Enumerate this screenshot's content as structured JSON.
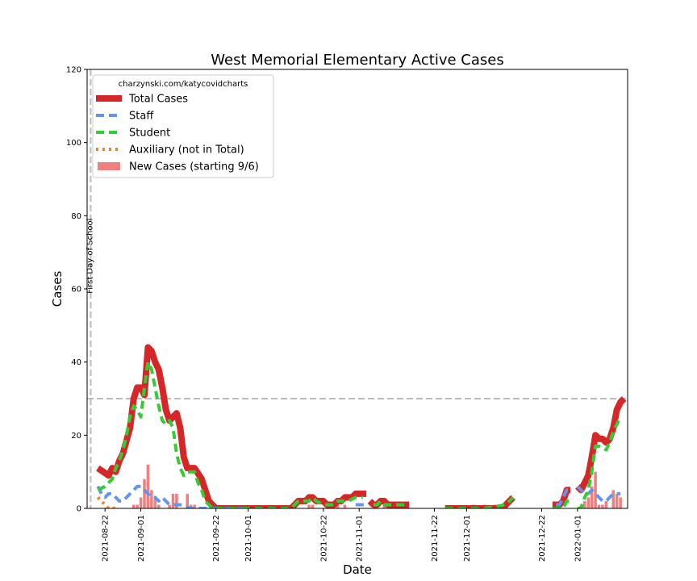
{
  "chart_data": {
    "type": "line",
    "title": "West Memorial Elementary Active Cases",
    "xlabel": "Date",
    "ylabel": "Cases",
    "ylim": [
      0,
      120
    ],
    "xlim": [
      "2021-08-17",
      "2022-01-15"
    ],
    "yticks": [
      0,
      20,
      40,
      60,
      80,
      100,
      120
    ],
    "xticks": [
      "2021-08-22",
      "2021-09-01",
      "2021-09-22",
      "2021-10-01",
      "2021-10-22",
      "2021-11-01",
      "2021-11-22",
      "2021-12-01",
      "2021-12-22",
      "2022-01-01"
    ],
    "credit": "charzynski.com/katycovidcharts",
    "legend_position": "top-left",
    "grid": false,
    "annotations": {
      "first_day": {
        "date": "2021-08-18",
        "label": "First Day of School"
      },
      "threshold": {
        "value": 30
      }
    },
    "series": [
      {
        "name": "Total Cases",
        "style": "solid",
        "color": "#d62728",
        "points": [
          [
            "2021-08-20",
            11
          ],
          [
            "2021-08-23",
            9
          ],
          [
            "2021-08-24",
            11
          ],
          [
            "2021-08-25",
            10
          ],
          [
            "2021-08-26",
            13
          ],
          [
            "2021-08-27",
            15
          ],
          [
            "2021-08-29",
            22
          ],
          [
            "2021-08-30",
            30
          ],
          [
            "2021-08-31",
            33
          ],
          [
            "2021-09-01",
            33
          ],
          [
            "2021-09-02",
            31
          ],
          [
            "2021-09-03",
            44
          ],
          [
            "2021-09-04",
            43
          ],
          [
            "2021-09-05",
            40
          ],
          [
            "2021-09-06",
            38
          ],
          [
            "2021-09-07",
            33
          ],
          [
            "2021-09-08",
            27
          ],
          [
            "2021-09-09",
            24
          ],
          [
            "2021-09-10",
            25
          ],
          [
            "2021-09-11",
            26
          ],
          [
            "2021-09-12",
            22
          ],
          [
            "2021-09-13",
            14
          ],
          [
            "2021-09-14",
            11
          ],
          [
            "2021-09-16",
            11
          ],
          [
            "2021-09-18",
            8
          ],
          [
            "2021-09-19",
            5
          ],
          [
            "2021-09-20",
            2
          ],
          [
            "2021-09-21",
            1
          ],
          [
            "2021-09-22",
            0
          ],
          [
            "2021-09-27",
            0
          ],
          [
            "2021-10-05",
            0
          ],
          [
            "2021-10-13",
            0
          ],
          [
            "2021-10-15",
            2
          ],
          [
            "2021-10-17",
            2
          ],
          [
            "2021-10-18",
            3
          ],
          [
            "2021-10-19",
            3
          ],
          [
            "2021-10-20",
            2
          ],
          [
            "2021-10-22",
            2
          ],
          [
            "2021-10-23",
            1
          ],
          [
            "2021-10-25",
            1
          ],
          [
            "2021-10-26",
            2
          ],
          [
            "2021-10-27",
            2
          ],
          [
            "2021-10-28",
            3
          ],
          [
            "2021-10-30",
            3
          ],
          [
            "2021-10-31",
            4
          ],
          [
            "2021-11-03",
            4
          ],
          null,
          [
            "2021-11-04",
            2
          ],
          [
            "2021-11-05",
            1
          ],
          [
            "2021-11-06",
            1
          ],
          [
            "2021-11-07",
            2
          ],
          [
            "2021-11-08",
            2
          ],
          [
            "2021-11-09",
            1
          ],
          [
            "2021-11-10",
            1
          ],
          [
            "2021-11-15",
            1
          ],
          null,
          [
            "2021-11-25",
            0
          ],
          [
            "2021-12-04",
            0
          ],
          [
            "2021-12-06",
            0
          ],
          [
            "2021-12-11",
            0
          ],
          [
            "2021-12-12",
            1
          ],
          [
            "2021-12-13",
            2
          ],
          [
            "2021-12-14",
            3
          ],
          null,
          [
            "2021-12-25",
            1
          ],
          [
            "2021-12-27",
            1
          ],
          [
            "2021-12-28",
            2
          ],
          [
            "2021-12-29",
            5
          ],
          [
            "2021-12-30",
            5
          ],
          null,
          [
            "2022-01-01",
            6
          ],
          [
            "2022-01-02",
            5
          ],
          [
            "2022-01-03",
            7
          ],
          [
            "2022-01-04",
            9
          ],
          [
            "2022-01-05",
            14
          ],
          [
            "2022-01-06",
            20
          ],
          [
            "2022-01-07",
            19
          ],
          [
            "2022-01-08",
            19
          ],
          [
            "2022-01-09",
            18
          ],
          [
            "2022-01-10",
            19
          ],
          [
            "2022-01-11",
            22
          ],
          [
            "2022-01-12",
            27
          ],
          [
            "2022-01-13",
            29
          ],
          [
            "2022-01-14",
            30
          ]
        ]
      },
      {
        "name": "Staff",
        "style": "dashed",
        "color": "#6495ed",
        "points": [
          [
            "2021-08-20",
            6
          ],
          [
            "2021-08-21",
            4
          ],
          [
            "2021-08-22",
            3
          ],
          [
            "2021-08-23",
            4
          ],
          [
            "2021-08-24",
            4
          ],
          [
            "2021-08-25",
            3
          ],
          [
            "2021-08-26",
            2
          ],
          [
            "2021-08-27",
            2
          ],
          [
            "2021-08-28",
            3
          ],
          [
            "2021-08-29",
            4
          ],
          [
            "2021-08-30",
            5
          ],
          [
            "2021-08-31",
            6
          ],
          [
            "2021-09-01",
            6
          ],
          [
            "2021-09-02",
            5
          ],
          [
            "2021-09-03",
            4
          ],
          [
            "2021-09-04",
            3
          ],
          [
            "2021-09-05",
            3
          ],
          [
            "2021-09-06",
            2
          ],
          [
            "2021-09-07",
            3
          ],
          [
            "2021-09-08",
            2
          ],
          [
            "2021-09-09",
            1
          ],
          [
            "2021-09-12",
            1
          ],
          [
            "2021-09-15",
            0
          ],
          [
            "2021-09-30",
            0
          ],
          null,
          [
            "2021-10-31",
            1
          ],
          [
            "2021-11-03",
            1
          ],
          null,
          [
            "2021-12-26",
            1
          ],
          [
            "2021-12-27",
            1
          ],
          [
            "2021-12-28",
            3
          ],
          [
            "2021-12-29",
            5
          ],
          [
            "2021-12-30",
            5
          ],
          null,
          [
            "2022-01-01",
            6
          ],
          [
            "2022-01-02",
            5
          ],
          [
            "2022-01-03",
            4
          ],
          [
            "2022-01-04",
            4
          ],
          [
            "2022-01-05",
            5
          ],
          [
            "2022-01-06",
            4
          ],
          [
            "2022-01-07",
            3
          ],
          [
            "2022-01-08",
            2
          ],
          [
            "2022-01-09",
            2
          ],
          [
            "2022-01-10",
            3
          ],
          [
            "2022-01-11",
            4
          ],
          [
            "2022-01-12",
            4
          ],
          [
            "2022-01-13",
            4
          ]
        ]
      },
      {
        "name": "Student",
        "style": "dashed",
        "color": "#32cd32",
        "points": [
          [
            "2021-08-20",
            5
          ],
          [
            "2021-08-22",
            6
          ],
          [
            "2021-08-23",
            7
          ],
          [
            "2021-08-24",
            8
          ],
          [
            "2021-08-25",
            11
          ],
          [
            "2021-08-26",
            13
          ],
          [
            "2021-08-27",
            16
          ],
          [
            "2021-08-28",
            20
          ],
          [
            "2021-08-29",
            25
          ],
          [
            "2021-08-30",
            28
          ],
          [
            "2021-08-31",
            27
          ],
          [
            "2021-09-01",
            25
          ],
          [
            "2021-09-02",
            33
          ],
          [
            "2021-09-03",
            40
          ],
          [
            "2021-09-04",
            38
          ],
          [
            "2021-09-05",
            33
          ],
          [
            "2021-09-06",
            28
          ],
          [
            "2021-09-07",
            24
          ],
          [
            "2021-09-08",
            23
          ],
          [
            "2021-09-09",
            24
          ],
          [
            "2021-09-10",
            22
          ],
          [
            "2021-09-11",
            15
          ],
          [
            "2021-09-12",
            11
          ],
          [
            "2021-09-13",
            9
          ],
          [
            "2021-09-14",
            10
          ],
          [
            "2021-09-16",
            10
          ],
          [
            "2021-09-17",
            7
          ],
          [
            "2021-09-18",
            5
          ],
          [
            "2021-09-19",
            2
          ],
          [
            "2021-09-20",
            1
          ],
          [
            "2021-09-21",
            0
          ],
          [
            "2021-10-13",
            0
          ],
          [
            "2021-10-15",
            2
          ],
          [
            "2021-10-18",
            2
          ],
          [
            "2021-10-19",
            3
          ],
          [
            "2021-10-20",
            2
          ],
          [
            "2021-10-22",
            1
          ],
          [
            "2021-10-25",
            1
          ],
          [
            "2021-10-26",
            2
          ],
          [
            "2021-10-29",
            2
          ],
          [
            "2021-10-31",
            3
          ],
          [
            "2021-11-02",
            3
          ],
          null,
          [
            "2021-11-05",
            1
          ],
          [
            "2021-11-06",
            1
          ],
          [
            "2021-11-07",
            2
          ],
          [
            "2021-11-08",
            1
          ],
          [
            "2021-11-10",
            1
          ],
          [
            "2021-11-15",
            1
          ],
          null,
          [
            "2021-11-25",
            0
          ],
          [
            "2021-12-06",
            0
          ],
          [
            "2021-12-12",
            1
          ],
          [
            "2021-12-14",
            3
          ],
          null,
          [
            "2021-12-25",
            0
          ],
          [
            "2021-12-28",
            0
          ],
          [
            "2021-12-29",
            2
          ],
          [
            "2021-12-30",
            2
          ],
          null,
          [
            "2022-01-01",
            0
          ],
          [
            "2022-01-02",
            0
          ],
          [
            "2022-01-03",
            3
          ],
          [
            "2022-01-04",
            5
          ],
          [
            "2022-01-05",
            10
          ],
          [
            "2022-01-06",
            17
          ],
          [
            "2022-01-07",
            17
          ],
          [
            "2022-01-09",
            16
          ],
          [
            "2022-01-10",
            18
          ],
          [
            "2022-01-11",
            21
          ],
          [
            "2022-01-13",
            25
          ]
        ]
      },
      {
        "name": "Auxiliary (not in Total)",
        "style": "dotted",
        "color": "#ff7f0e",
        "points": [
          [
            "2021-08-20",
            3
          ],
          [
            "2021-08-21",
            2
          ],
          [
            "2021-08-22",
            1
          ],
          [
            "2021-08-23",
            0
          ],
          [
            "2021-08-25",
            0
          ]
        ]
      },
      {
        "name": "New Cases (starting 9/6)",
        "style": "bar",
        "color": "#f08080",
        "points": [
          [
            "2021-08-30",
            1
          ],
          [
            "2021-08-31",
            1
          ],
          [
            "2021-09-01",
            3
          ],
          [
            "2021-09-02",
            8
          ],
          [
            "2021-09-03",
            12
          ],
          [
            "2021-09-04",
            5
          ],
          [
            "2021-09-05",
            3
          ],
          [
            "2021-09-06",
            1
          ],
          [
            "2021-09-09",
            1
          ],
          [
            "2021-09-10",
            4
          ],
          [
            "2021-09-11",
            4
          ],
          [
            "2021-09-14",
            4
          ],
          [
            "2021-09-15",
            1
          ],
          [
            "2021-09-16",
            1
          ],
          [
            "2021-10-18",
            1
          ],
          [
            "2021-10-19",
            1
          ],
          [
            "2021-10-26",
            1
          ],
          [
            "2021-10-28",
            1
          ],
          [
            "2021-11-08",
            1
          ],
          [
            "2021-12-03",
            1
          ],
          [
            "2021-12-06",
            1
          ],
          [
            "2021-12-09",
            1
          ],
          [
            "2021-12-12",
            1
          ],
          [
            "2021-12-27",
            1
          ],
          [
            "2022-01-02",
            1
          ],
          [
            "2022-01-03",
            2
          ],
          [
            "2022-01-04",
            3
          ],
          [
            "2022-01-05",
            6
          ],
          [
            "2022-01-06",
            10
          ],
          [
            "2022-01-07",
            1
          ],
          [
            "2022-01-08",
            1
          ],
          [
            "2022-01-09",
            2
          ],
          [
            "2022-01-11",
            5
          ],
          [
            "2022-01-12",
            4
          ],
          [
            "2022-01-13",
            3
          ]
        ]
      }
    ]
  }
}
